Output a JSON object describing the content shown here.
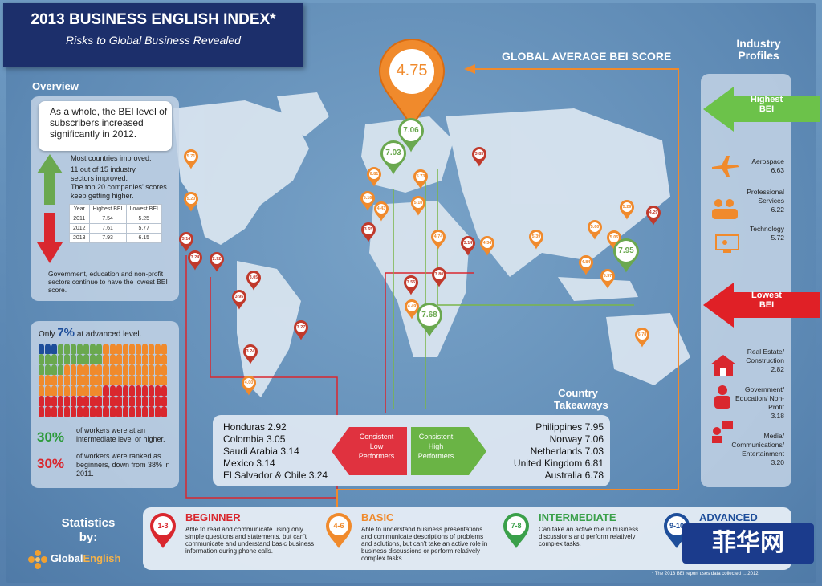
{
  "header": {
    "title": "2013 BUSINESS ENGLISH INDEX*",
    "subtitle": "Risks to Global Business Revealed"
  },
  "global_average": {
    "label": "GLOBAL AVERAGE BEI SCORE",
    "value": "4.75"
  },
  "overview": {
    "heading": "Overview",
    "intro": "As a whole, the BEI level of subscribers increased significantly in 2012.",
    "bullets": [
      "Most countries improved.",
      "11 out of 15 industry sectors improved.",
      "The top 20 companies' scores keep getting higher."
    ],
    "table": {
      "headers": [
        "Year",
        "Highest BEI",
        "Lowest BEI"
      ],
      "rows": [
        [
          "2011",
          "7.54",
          "5.25"
        ],
        [
          "2012",
          "7.61",
          "5.77"
        ],
        [
          "2013",
          "7.93",
          "6.15"
        ]
      ]
    },
    "footer": "Government, education and non-profit sectors continue to have the lowest BEI score."
  },
  "workforce": {
    "advanced_prefix": "Only",
    "advanced_pct": "7%",
    "advanced_suffix": "at advanced level.",
    "intermediate_pct": "30%",
    "intermediate_text": "of workers were at an intermediate level or higher.",
    "beginner_pct": "30%",
    "beginner_text": "of workers were ranked as beginners, down from 38% in 2011."
  },
  "industry": {
    "heading_line1": "Industry",
    "heading_line2": "Profiles",
    "highest_label_line1": "Highest",
    "highest_label_line2": "BEI",
    "highest": [
      {
        "name": "Aerospace",
        "score": "6.63",
        "icon": "airplane-icon"
      },
      {
        "name": "Professional Services",
        "score": "6.22",
        "icon": "people-icon"
      },
      {
        "name": "Technology",
        "score": "5.72",
        "icon": "computer-icon"
      }
    ],
    "lowest_label_line1": "Lowest",
    "lowest_label_line2": "BEI",
    "lowest": [
      {
        "name": "Real Estate/ Construction",
        "score": "2.82",
        "icon": "house-icon"
      },
      {
        "name": "Government/ Education/ Non-Profit",
        "score": "3.18",
        "icon": "person-icon"
      },
      {
        "name": "Media/ Communications/ Entertainment",
        "score": "3.20",
        "icon": "media-icon"
      }
    ]
  },
  "takeaways": {
    "heading_line1": "Country",
    "heading_line2": "Takeaways",
    "low_label": [
      "Consistent",
      "Low",
      "Performers"
    ],
    "high_label": [
      "Consistent",
      "High",
      "Performers"
    ],
    "low": [
      "Honduras 2.92",
      "Colombia 3.05",
      "Saudi Arabia 3.14",
      "Mexico 3.14",
      "El Salvador & Chile 3.24"
    ],
    "high": [
      "Philippines 7.95",
      "Norway 7.06",
      "Netherlands 7.03",
      "United Kingdom 6.81",
      "Australia 6.78"
    ]
  },
  "map_pins": [
    {
      "v": "5.71",
      "c": "#f08a2c"
    },
    {
      "v": "5.20",
      "c": "#f08a2c"
    },
    {
      "v": "3.14",
      "c": "#c0392b"
    },
    {
      "v": "3.24",
      "c": "#c0392b"
    },
    {
      "v": "2.92",
      "c": "#c0392b"
    },
    {
      "v": "3.05",
      "c": "#c0392b"
    },
    {
      "v": "3.95",
      "c": "#c0392b"
    },
    {
      "v": "3.27",
      "c": "#c0392b"
    },
    {
      "v": "3.24",
      "c": "#c0392b"
    },
    {
      "v": "4.00",
      "c": "#f08a2c"
    },
    {
      "v": "7.06",
      "c": "#6aa84f"
    },
    {
      "v": "7.03",
      "c": "#6aa84f"
    },
    {
      "v": "6.81",
      "c": "#f08a2c"
    },
    {
      "v": "5.73",
      "c": "#f08a2c"
    },
    {
      "v": "5.16",
      "c": "#f08a2c"
    },
    {
      "v": "4.43",
      "c": "#f08a2c"
    },
    {
      "v": "5.10",
      "c": "#f08a2c"
    },
    {
      "v": "3.85",
      "c": "#c0392b"
    },
    {
      "v": "3.65",
      "c": "#c0392b"
    },
    {
      "v": "4.74",
      "c": "#f08a2c"
    },
    {
      "v": "3.14",
      "c": "#c0392b"
    },
    {
      "v": "4.34",
      "c": "#f08a2c"
    },
    {
      "v": "3.80",
      "c": "#c0392b"
    },
    {
      "v": "3.55",
      "c": "#c0392b"
    },
    {
      "v": "4.49",
      "c": "#f08a2c"
    },
    {
      "v": "7.68",
      "c": "#6aa84f"
    },
    {
      "v": "5.39",
      "c": "#f08a2c"
    },
    {
      "v": "5.60",
      "c": "#f08a2c"
    },
    {
      "v": "5.29",
      "c": "#f08a2c"
    },
    {
      "v": "4.29",
      "c": "#c0392b"
    },
    {
      "v": "5.05",
      "c": "#f08a2c"
    },
    {
      "v": "4.84",
      "c": "#f08a2c"
    },
    {
      "v": "7.95",
      "c": "#6aa84f"
    },
    {
      "v": "5.57",
      "c": "#f08a2c"
    },
    {
      "v": "6.78",
      "c": "#f08a2c"
    }
  ],
  "levels": [
    {
      "range": "1-3",
      "name": "BEGINNER",
      "color": "#d9272e",
      "text": "Able to read and communicate using only simple questions and statements, but can't communicate and understand basic business information during phone calls."
    },
    {
      "range": "4-6",
      "name": "BASIC",
      "color": "#f08a2c",
      "text": "Able to understand business presentations and communicate descriptions of problems and solutions, but can't take an active role in business discussions or perform relatively complex tasks."
    },
    {
      "range": "7-8",
      "name": "INTERMEDIATE",
      "color": "#3aa04a",
      "text": "Can take an active role in business discussions and perform relatively complex tasks."
    },
    {
      "range": "9-10",
      "name": "ADVANCED",
      "color": "#1e4e9a",
      "text": ""
    }
  ],
  "statistics": {
    "line1": "Statistics",
    "line2": "by:",
    "brand_a": "Global",
    "brand_b": "English"
  },
  "footnote": "* The 2013 BEI report uses data collected ... 2012",
  "watermark": "菲华网"
}
